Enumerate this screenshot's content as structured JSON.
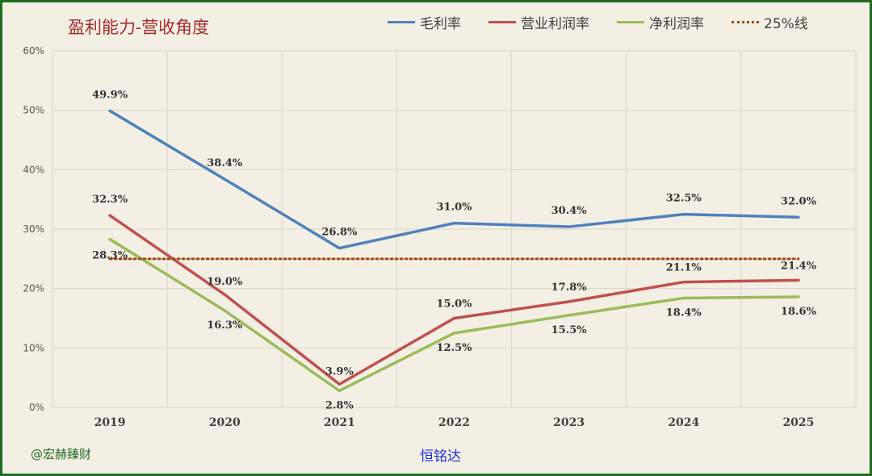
{
  "chart_data": {
    "type": "line",
    "title": "盈利能力-营收角度",
    "categories": [
      "2019",
      "2020",
      "2021",
      "2022",
      "2023",
      "2024",
      "2025"
    ],
    "ylim": [
      0,
      60
    ],
    "yticks": [
      "0%",
      "10%",
      "20%",
      "30%",
      "40%",
      "50%",
      "60%"
    ],
    "grid": true,
    "legend_position": "top-right",
    "series": [
      {
        "name": "毛利率",
        "color": "#4f81bd",
        "style": "solid",
        "values": [
          49.9,
          38.4,
          26.8,
          31.0,
          30.4,
          32.5,
          32.0
        ],
        "labels": [
          "49.9%",
          "38.4%",
          "26.8%",
          "31.0%",
          "30.4%",
          "32.5%",
          "32.0%"
        ]
      },
      {
        "name": "营业利润率",
        "color": "#c0504d",
        "style": "solid",
        "values": [
          32.3,
          19.0,
          3.9,
          15.0,
          17.8,
          21.1,
          21.4
        ],
        "labels": [
          "32.3%",
          "19.0%",
          "3.9%",
          "15.0%",
          "17.8%",
          "21.1%",
          "21.4%"
        ]
      },
      {
        "name": "净利润率",
        "color": "#9bbb59",
        "style": "solid",
        "values": [
          28.3,
          16.3,
          2.8,
          12.5,
          15.5,
          18.4,
          18.6
        ],
        "labels": [
          "28.3%",
          "16.3%",
          "2.8%",
          "12.5%",
          "15.5%",
          "18.4%",
          "18.6%"
        ]
      },
      {
        "name": "25%线",
        "color": "#a04a12",
        "style": "dotted",
        "values": [
          25,
          25,
          25,
          25,
          25,
          25,
          25
        ]
      }
    ]
  },
  "footer": {
    "author": "@宏赫臻财",
    "company": "恒铭达"
  }
}
